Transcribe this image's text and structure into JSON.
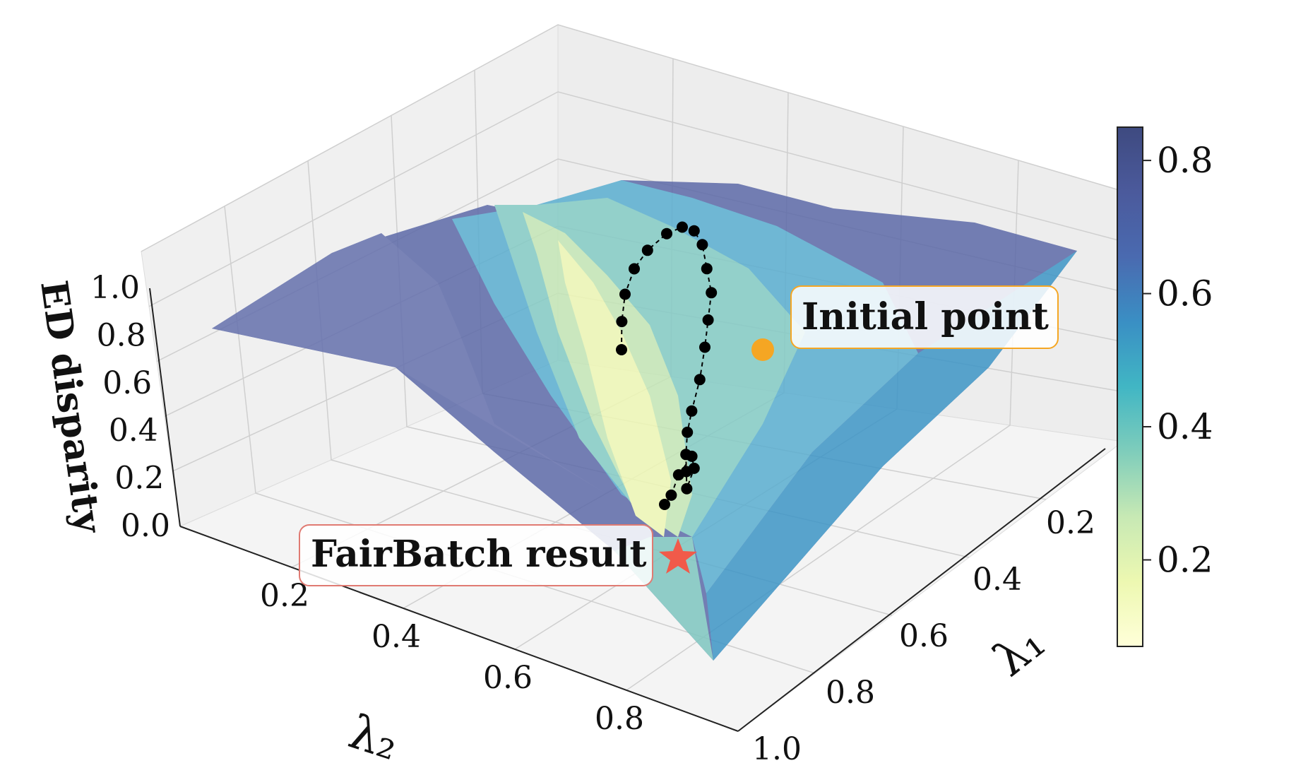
{
  "chart_data": {
    "type": "surface3d",
    "xlabel": "λ₂",
    "ylabel": "λ₁",
    "zlabel": "ED disparity",
    "x_ticks": [
      "0.2",
      "0.4",
      "0.6",
      "0.8"
    ],
    "y_ticks": [
      "0.2",
      "0.4",
      "0.6",
      "0.8",
      "1.0"
    ],
    "z_ticks": [
      "0.0",
      "0.2",
      "0.4",
      "0.6",
      "0.8",
      "1.0"
    ],
    "xlim": [
      0,
      1
    ],
    "ylim": [
      0,
      1
    ],
    "zlim": [
      0,
      1
    ],
    "colormap": "YlGnBu",
    "colorbar": {
      "ticks": [
        "0.2",
        "0.4",
        "0.6",
        "0.8"
      ],
      "range": [
        0.07,
        0.85
      ],
      "colors": [
        "#ffffd9",
        "#edf8b1",
        "#c7e9b4",
        "#7fcdbb",
        "#41b6c4",
        "#1d91c0",
        "#225ea8",
        "#253494",
        "#081d58"
      ]
    },
    "surface_description": "ED disparity is low (yellow) along a valley from near λ2=0.5, λ1=0.9 up toward λ2=0.25, λ1=0.1, and high (dark blue) at the outer corners",
    "annotations": [
      {
        "label": "Initial point",
        "lambda2": 0.25,
        "lambda1": 0.55,
        "color": "#f5a623",
        "marker": "circle"
      },
      {
        "label": "FairBatch result",
        "lambda2": 0.55,
        "lambda1": 0.8,
        "color": "#f15a4a",
        "marker": "star"
      }
    ],
    "trajectory": [
      [
        0.25,
        0.55
      ],
      [
        0.22,
        0.5
      ],
      [
        0.2,
        0.45
      ],
      [
        0.2,
        0.4
      ],
      [
        0.22,
        0.36
      ],
      [
        0.26,
        0.32
      ],
      [
        0.3,
        0.3
      ],
      [
        0.34,
        0.3
      ],
      [
        0.38,
        0.32
      ],
      [
        0.42,
        0.36
      ],
      [
        0.46,
        0.4
      ],
      [
        0.48,
        0.45
      ],
      [
        0.5,
        0.5
      ],
      [
        0.52,
        0.56
      ],
      [
        0.53,
        0.62
      ],
      [
        0.54,
        0.66
      ],
      [
        0.56,
        0.7
      ],
      [
        0.58,
        0.73
      ],
      [
        0.6,
        0.76
      ],
      [
        0.6,
        0.72
      ],
      [
        0.58,
        0.7
      ],
      [
        0.56,
        0.74
      ],
      [
        0.56,
        0.78
      ],
      [
        0.55,
        0.8
      ]
    ]
  }
}
